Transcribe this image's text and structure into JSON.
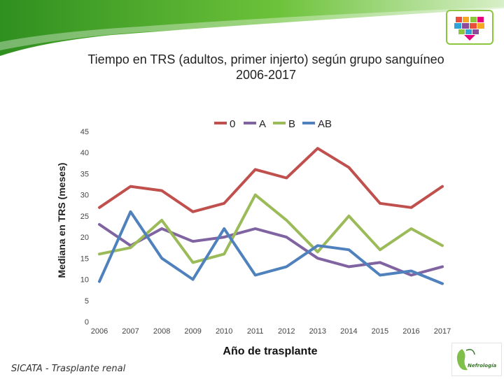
{
  "slide": {
    "title_line1": "Tiempo en TRS (adultos, primer injerto) según grupo sanguíneo",
    "title_line2": "2006-2017",
    "footer": "SICATA - Trasplante renal",
    "bottom_logo_text": "Nefrología"
  },
  "colors": {
    "green_band": "#5cb531",
    "heart": [
      "#e94e3c",
      "#f7a823",
      "#8cc63f",
      "#2ea3d9",
      "#8e4b9c",
      "#e4007f"
    ]
  },
  "chart_data": {
    "type": "line",
    "title": "",
    "xlabel": "Año de trasplante",
    "ylabel": "Mediana en TRS (meses)",
    "categories": [
      "2006",
      "2007",
      "2008",
      "2009",
      "2010",
      "2011",
      "2012",
      "2013",
      "2014",
      "2015",
      "2016",
      "2017"
    ],
    "ylim": [
      0,
      45
    ],
    "yticks": [
      0,
      5,
      10,
      15,
      20,
      25,
      30,
      35,
      40,
      45
    ],
    "legend_position": "top",
    "grid": false,
    "series": [
      {
        "name": "0",
        "color": "#c0504d",
        "values": [
          27,
          32,
          31,
          26,
          28,
          36,
          34,
          41,
          36.5,
          28,
          27,
          32
        ]
      },
      {
        "name": "A",
        "color": "#8064a2",
        "values": [
          23,
          18,
          22,
          19,
          20,
          22,
          20,
          15,
          13,
          14,
          11,
          13
        ]
      },
      {
        "name": "B",
        "color": "#9bbb59",
        "values": [
          16,
          17.5,
          24,
          14,
          16,
          30,
          24,
          16.5,
          25,
          17,
          22,
          18
        ]
      },
      {
        "name": "AB",
        "color": "#4f81bd",
        "values": [
          9.5,
          26,
          15,
          10,
          22,
          11,
          13,
          18,
          17,
          11,
          12,
          9
        ]
      }
    ]
  }
}
